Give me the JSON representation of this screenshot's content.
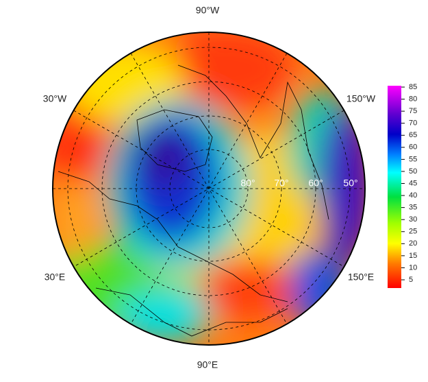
{
  "map": {
    "longitude_labels": [
      "90°W",
      "30°W",
      "150°W",
      "30°E",
      "150°E",
      "90°E"
    ],
    "latitude_labels": [
      "80°",
      "70°",
      "60°",
      "50°"
    ],
    "colorbar": {
      "ticks": [
        5,
        10,
        15,
        20,
        25,
        30,
        35,
        40,
        45,
        50,
        55,
        60,
        65,
        70,
        75,
        80,
        85
      ]
    }
  }
}
